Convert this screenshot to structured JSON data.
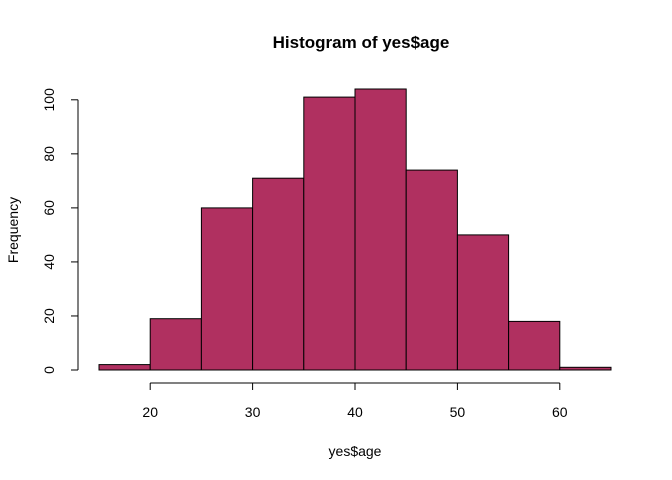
{
  "chart_data": {
    "type": "bar",
    "title": "Histogram of yes$age",
    "xlabel": "yes$age",
    "ylabel": "Frequency",
    "bin_edges": [
      15,
      20,
      25,
      30,
      35,
      40,
      45,
      50,
      55,
      60,
      65
    ],
    "values": [
      2,
      19,
      60,
      71,
      101,
      104,
      74,
      50,
      18,
      1
    ],
    "xlim": [
      15,
      65
    ],
    "ylim": [
      0,
      104
    ],
    "x_ticks": [
      20,
      30,
      40,
      50,
      60
    ],
    "x_tick_labels": [
      "20",
      "30",
      "40",
      "50",
      "60"
    ],
    "y_ticks": [
      0,
      20,
      40,
      60,
      80,
      100
    ],
    "y_tick_labels": [
      "0",
      "20",
      "40",
      "60",
      "80",
      "100"
    ],
    "grid": false,
    "bar_color": "#B03060",
    "edge_color": "#000000"
  }
}
